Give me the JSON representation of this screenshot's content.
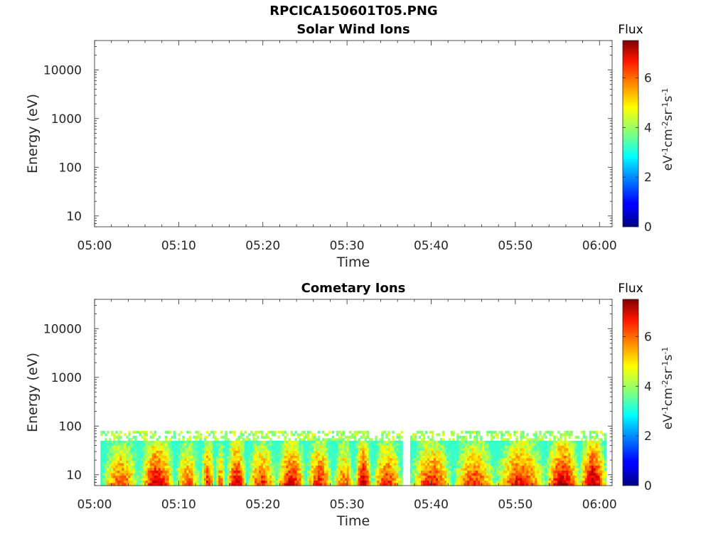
{
  "figure": {
    "title": "RPCICA150601T05.PNG"
  },
  "chart_data": [
    {
      "type": "heatmap",
      "title": "Solar Wind Ions",
      "xlabel": "Time",
      "ylabel": "Energy (eV)",
      "x_ticks": [
        "05:00",
        "05:10",
        "05:20",
        "05:30",
        "05:40",
        "05:50",
        "06:00"
      ],
      "xlim_minutes": [
        0,
        61.5
      ],
      "y_scale": "log",
      "y_ticks": [
        "10",
        "100",
        "1000",
        "10000"
      ],
      "ylim": [
        6,
        40000
      ],
      "colorbar": {
        "title": "Flux",
        "unit_label": "eV-1cm-2sr-1s-1",
        "ticks": [
          "0",
          "2",
          "4",
          "6"
        ],
        "range": [
          0,
          7.5
        ],
        "colormap": "jet"
      },
      "segments": []
    },
    {
      "type": "heatmap",
      "title": "Cometary Ions",
      "xlabel": "Time",
      "ylabel": "Energy (eV)",
      "x_ticks": [
        "05:00",
        "05:10",
        "05:20",
        "05:30",
        "05:40",
        "05:50",
        "06:00"
      ],
      "xlim_minutes": [
        0,
        61.5
      ],
      "y_scale": "log",
      "y_ticks": [
        "10",
        "100",
        "1000",
        "10000"
      ],
      "ylim": [
        6,
        40000
      ],
      "colorbar": {
        "title": "Flux",
        "unit_label": "eV-1cm-2sr-1s-1",
        "ticks": [
          "0",
          "2",
          "4",
          "6"
        ],
        "range": [
          0,
          7.5
        ],
        "colormap": "jet"
      },
      "energy_range_eV": [
        6,
        80
      ],
      "segments": [
        {
          "start_min": 0.7,
          "end_min": 5.3,
          "peak_flux": 6.2
        },
        {
          "start_min": 5.3,
          "end_min": 9.4,
          "peak_flux": 7.1
        },
        {
          "start_min": 9.4,
          "end_min": 12.5,
          "peak_flux": 6.0
        },
        {
          "start_min": 12.5,
          "end_min": 14.2,
          "peak_flux": 6.5
        },
        {
          "start_min": 14.2,
          "end_min": 15.5,
          "peak_flux": 5.8
        },
        {
          "start_min": 15.5,
          "end_min": 18.0,
          "peak_flux": 7.0
        },
        {
          "start_min": 18.0,
          "end_min": 21.5,
          "peak_flux": 6.4
        },
        {
          "start_min": 21.5,
          "end_min": 25.0,
          "peak_flux": 6.9
        },
        {
          "start_min": 25.0,
          "end_min": 28.2,
          "peak_flux": 6.6
        },
        {
          "start_min": 28.2,
          "end_min": 30.8,
          "peak_flux": 6.0
        },
        {
          "start_min": 30.8,
          "end_min": 32.8,
          "peak_flux": 7.2
        },
        {
          "start_min": 32.8,
          "end_min": 36.5,
          "peak_flux": 6.5
        },
        {
          "start_min": 37.5,
          "end_min": 42.5,
          "peak_flux": 6.6
        },
        {
          "start_min": 42.5,
          "end_min": 47.5,
          "peak_flux": 6.5
        },
        {
          "start_min": 47.5,
          "end_min": 53.5,
          "peak_flux": 6.7
        },
        {
          "start_min": 53.5,
          "end_min": 57.5,
          "peak_flux": 7.3
        },
        {
          "start_min": 57.5,
          "end_min": 60.7,
          "peak_flux": 7.4
        }
      ]
    }
  ]
}
